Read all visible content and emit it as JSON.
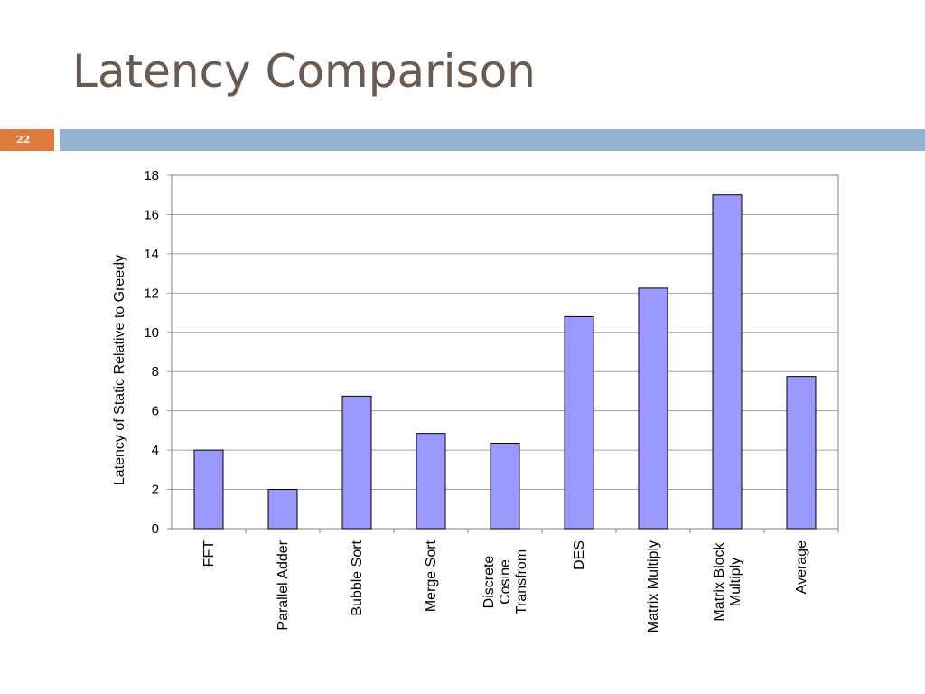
{
  "slide": {
    "title": "Latency Comparison",
    "page_number": "22"
  },
  "colors": {
    "bar_fill": "#9999ff",
    "bar_stroke": "#000000",
    "accent_orange": "#e07a3c",
    "header_bar": "#93b3d3",
    "title": "#6b5a50"
  },
  "chart_data": {
    "type": "bar",
    "title": "",
    "xlabel": "",
    "ylabel": "Latency of Static Relative to Greedy",
    "ylim": [
      0,
      18
    ],
    "yticks": [
      0,
      2,
      4,
      6,
      8,
      10,
      12,
      14,
      16,
      18
    ],
    "grid": true,
    "legend": "none",
    "categories": [
      [
        "FFT"
      ],
      [
        "Parallel Adder"
      ],
      [
        "Bubble Sort"
      ],
      [
        "Merge Sort"
      ],
      [
        "Discrete",
        "Cosine",
        "Transfrom"
      ],
      [
        "DES"
      ],
      [
        "Matrix Multiply"
      ],
      [
        "Matrix Block",
        "Multiply"
      ],
      [
        "Average"
      ]
    ],
    "values": [
      4.0,
      2.0,
      6.75,
      4.85,
      4.35,
      10.8,
      12.25,
      17.0,
      7.75
    ]
  }
}
